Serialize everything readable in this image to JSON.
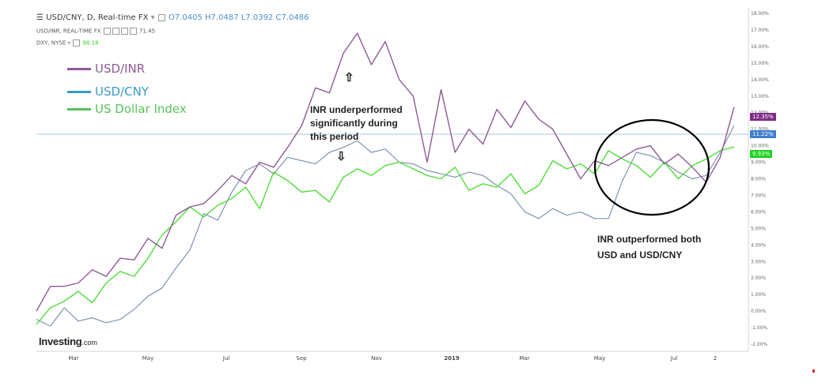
{
  "header": {
    "title": "USD/CNY, D, Real-time FX",
    "ohlc": "O7.0405 H7.0487 L7.0392 C7.0486",
    "study1_name": "USD/INR, REAL-TIME FX",
    "study1_value": "71.45",
    "study2_name": "DXY, NYSE",
    "study2_value": "98.18"
  },
  "legend": [
    {
      "label": "USD/INR",
      "color": "#8e5a96"
    },
    {
      "label": "USD/CNY",
      "color": "#3a9bc7"
    },
    {
      "label": "US Dollar Index",
      "color": "#59c15a"
    }
  ],
  "annotations": {
    "upper_lines": [
      "INR underperformed",
      "significantly during",
      "this period"
    ],
    "lower_lines": [
      "INR outperformed both",
      "USD and USD/CNY"
    ],
    "up_arrow": "⇧",
    "down_arrow": "⇩"
  },
  "badges": {
    "inr": {
      "text": "12.35%",
      "color": "#7e2d86"
    },
    "cny": {
      "text": "11.22%",
      "color": "#3d7fd0"
    },
    "dxy": {
      "text": "9.93%",
      "color": "#22d11f"
    }
  },
  "logo": {
    "brand": "Investing",
    "suffix": ".com"
  },
  "colors": {
    "inr": "#8e5a96",
    "cny": "#7f93b5",
    "dxy": "#4fde3a",
    "circle": "#000000"
  },
  "chart_data": {
    "type": "line",
    "y_unit": "%",
    "ylim": [
      -2,
      18
    ],
    "ytick_labels": [
      "18.00%",
      "17.00%",
      "16.00%",
      "15.00%",
      "14.00%",
      "13.00%",
      "12.00%",
      "11.00%",
      "10.00%",
      "9.00%",
      "8.00%",
      "7.00%",
      "6.00%",
      "5.00%",
      "4.00%",
      "3.00%",
      "2.00%",
      "1.00%",
      "0.00%",
      "-1.00%",
      "-2.00%"
    ],
    "xtick_labels": [
      "Mar",
      "May",
      "Jul",
      "Sep",
      "Nov",
      "2019",
      "Mar",
      "May",
      "Jul",
      "2"
    ],
    "series": [
      {
        "name": "USD/INR",
        "values": [
          0,
          1.5,
          1.5,
          1.7,
          2.5,
          2.1,
          3.2,
          3.1,
          4.4,
          3.8,
          5.8,
          6.3,
          6.5,
          7.3,
          8.2,
          7.7,
          9.0,
          8.7,
          9.9,
          11.2,
          13.5,
          13.2,
          15.6,
          16.8,
          14.9,
          16.3,
          14.0,
          13.0,
          9.0,
          13.4,
          9.6,
          11.0,
          10.1,
          12.2,
          11.1,
          12.7,
          11.6,
          11.0,
          9.5,
          8.0,
          9.1,
          8.8,
          9.3,
          9.8,
          10.0,
          8.9,
          9.5,
          8.7,
          7.8,
          9.3,
          12.35
        ]
      },
      {
        "name": "USD/CNY",
        "values": [
          -0.5,
          -0.9,
          0.2,
          -0.6,
          -0.4,
          -0.7,
          -0.5,
          0.1,
          0.9,
          1.4,
          2.6,
          3.7,
          5.9,
          5.5,
          7.2,
          8.5,
          8.9,
          8.3,
          9.3,
          9.1,
          8.9,
          9.6,
          9.9,
          10.3,
          9.6,
          9.8,
          9.0,
          8.9,
          8.5,
          8.3,
          8.1,
          8.4,
          8.2,
          7.6,
          7.1,
          6.0,
          5.6,
          6.2,
          5.8,
          6.0,
          5.6,
          5.6,
          7.9,
          9.6,
          9.4,
          9.0,
          8.4,
          8.0,
          8.2,
          9.6,
          11.22
        ]
      },
      {
        "name": "US Dollar Index",
        "values": [
          -0.8,
          0.2,
          0.6,
          1.2,
          0.5,
          1.7,
          2.4,
          2.1,
          3.2,
          4.6,
          5.4,
          6.3,
          5.7,
          6.4,
          6.8,
          7.5,
          6.2,
          8.4,
          7.9,
          7.2,
          7.3,
          6.6,
          8.1,
          8.6,
          8.2,
          8.8,
          9.0,
          8.6,
          8.2,
          8.0,
          8.7,
          7.3,
          7.7,
          7.5,
          8.3,
          7.1,
          7.6,
          9.1,
          8.6,
          8.9,
          8.3,
          9.7,
          9.2,
          8.8,
          8.1,
          9.0,
          8.0,
          8.8,
          9.2,
          9.7,
          9.93
        ]
      }
    ]
  }
}
